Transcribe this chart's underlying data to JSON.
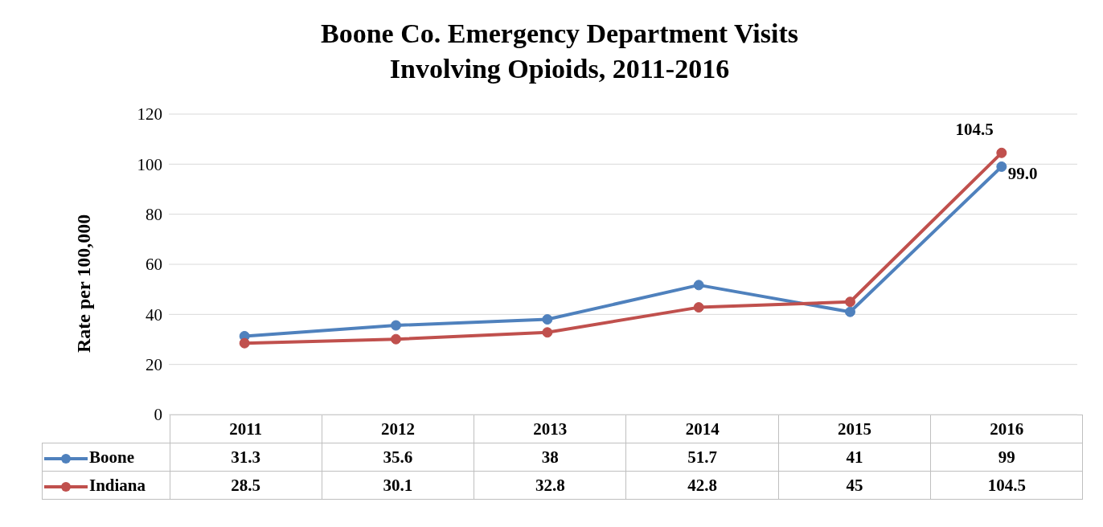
{
  "chart_data": {
    "type": "line",
    "title": "Boone Co. Emergency Department Visits Involving Opioids, 2011-2016",
    "ylabel": "Rate per 100,000",
    "categories": [
      "2011",
      "2012",
      "2013",
      "2014",
      "2015",
      "2016"
    ],
    "series": [
      {
        "name": "Boone",
        "color": "#4f81bd",
        "values": [
          31.3,
          35.6,
          38,
          51.7,
          41,
          99
        ]
      },
      {
        "name": "Indiana",
        "color": "#c0504d",
        "values": [
          28.5,
          30.1,
          32.8,
          42.8,
          45,
          104.5
        ]
      }
    ],
    "annotations": [
      {
        "text": "104.5",
        "x": "2016",
        "y": 104.5
      },
      {
        "text": "99.0",
        "x": "2016",
        "y": 99
      }
    ],
    "ylim": [
      0,
      120
    ],
    "yticks": [
      0,
      20,
      40,
      60,
      80,
      100,
      120
    ],
    "grid": "y",
    "legend": "bottom",
    "marker": "circle",
    "data_labels": true
  }
}
